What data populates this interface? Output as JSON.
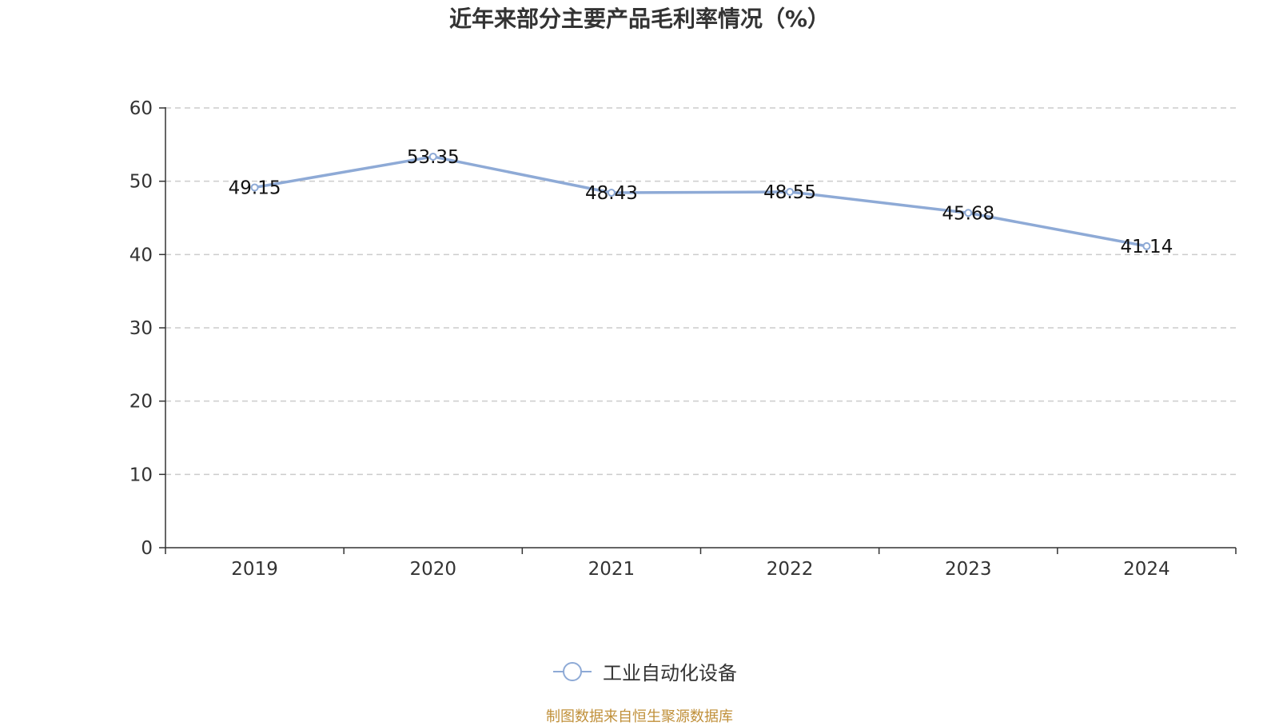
{
  "chart_data": {
    "type": "line",
    "title": "近年来部分主要产品毛利率情况（%）",
    "categories": [
      "2019",
      "2020",
      "2021",
      "2022",
      "2023",
      "2024"
    ],
    "series": [
      {
        "name": "工业自动化设备",
        "values": [
          49.15,
          53.35,
          48.43,
          48.55,
          45.68,
          41.14
        ]
      }
    ],
    "ylim": [
      0,
      60
    ],
    "yticks": [
      0,
      10,
      20,
      30,
      40,
      50,
      60
    ],
    "grid": true,
    "legend_position": "bottom",
    "data_labels": [
      "49.15",
      "53.35",
      "48.43",
      "48.55",
      "45.68",
      "41.14"
    ],
    "line_color": "#8eaad6"
  },
  "source_note": "制图数据来自恒生聚源数据库"
}
